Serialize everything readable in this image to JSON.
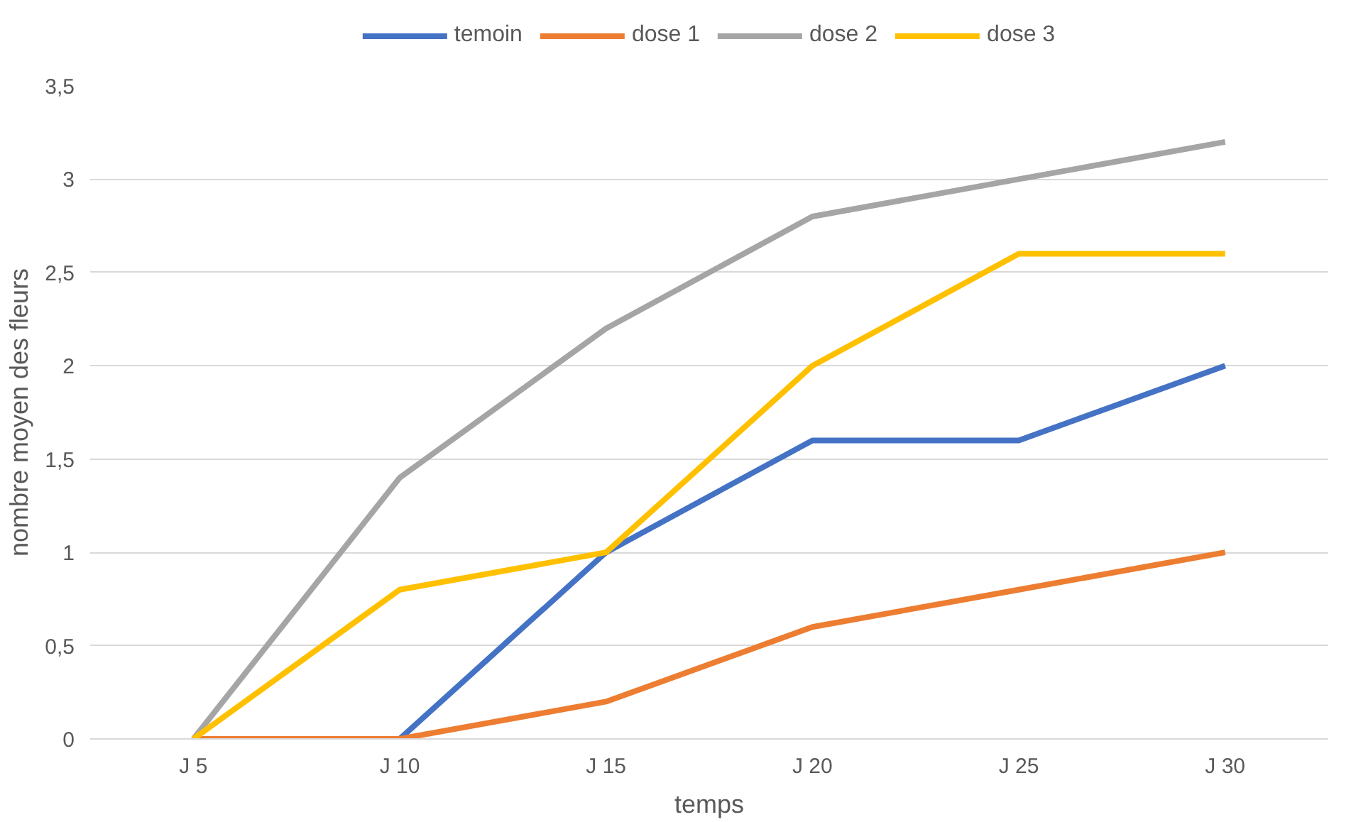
{
  "chart_data": {
    "type": "line",
    "xlabel": "temps",
    "ylabel": "nombre moyen des fleurs",
    "categories": [
      "J 5",
      "J 10",
      "J 15",
      "J 20",
      "J 25",
      "J 30"
    ],
    "series": [
      {
        "name": "temoin",
        "color": "#4472c4",
        "values": [
          0,
          0,
          1,
          1.6,
          1.6,
          2
        ]
      },
      {
        "name": "dose 1",
        "color": "#ed7d31",
        "values": [
          0,
          0,
          0.2,
          0.6,
          0.8,
          1
        ]
      },
      {
        "name": "dose 2",
        "color": "#a5a5a5",
        "values": [
          0,
          1.4,
          2.2,
          2.8,
          3.0,
          3.2
        ]
      },
      {
        "name": "dose 3",
        "color": "#ffc000",
        "values": [
          0,
          0.8,
          1.0,
          2.0,
          2.6,
          2.6
        ]
      }
    ],
    "ylim": [
      0,
      3.5
    ],
    "yticks": [
      0,
      {
        "value": 0.5,
        "label": "0,5"
      },
      1,
      {
        "value": 1.5,
        "label": "1,5"
      },
      2,
      {
        "value": 2.5,
        "label": "2,5"
      },
      3,
      {
        "value": 3.5,
        "label": "3,5"
      }
    ],
    "grid": "y",
    "legend": "top"
  }
}
